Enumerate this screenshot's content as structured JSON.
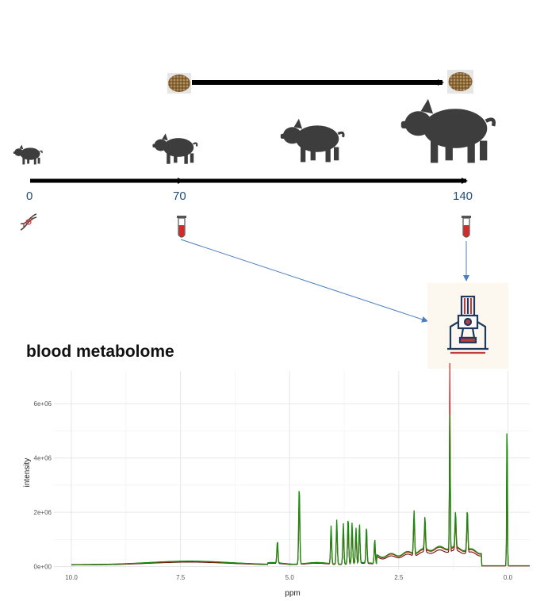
{
  "timeline": {
    "ticks": [
      "0",
      "70",
      "140"
    ],
    "tick_days": [
      0,
      70,
      140
    ]
  },
  "section_title": "blood metabolome",
  "chart_data": {
    "type": "line",
    "title": "",
    "xlabel": "ppm",
    "ylabel": "intensity",
    "x_reversed": true,
    "xlim": [
      10.4,
      -0.5
    ],
    "ylim": [
      -100000,
      7200000
    ],
    "xticks": [
      10.0,
      7.5,
      5.0,
      2.5,
      0.0
    ],
    "xtick_labels": [
      "10.0",
      "7.5",
      "5.0",
      "2.5",
      "0.0"
    ],
    "yticks": [
      0,
      2000000,
      4000000,
      6000000
    ],
    "ytick_labels": [
      "0e+00",
      "2e+06",
      "4e+06",
      "6e+06"
    ],
    "grid": true,
    "legend": "none",
    "series_colors": [
      "#6b0f0f",
      "#e01010",
      "#1b8a10"
    ],
    "peaks": [
      {
        "x": 5.28,
        "y": 820000
      },
      {
        "x": 4.78,
        "y": 2900000
      },
      {
        "x": 4.05,
        "y": 1400000
      },
      {
        "x": 3.92,
        "y": 1650000
      },
      {
        "x": 3.77,
        "y": 1500000
      },
      {
        "x": 3.66,
        "y": 1700000
      },
      {
        "x": 3.57,
        "y": 1500000
      },
      {
        "x": 3.48,
        "y": 1300000
      },
      {
        "x": 3.4,
        "y": 1450000
      },
      {
        "x": 3.24,
        "y": 1350000
      },
      {
        "x": 3.05,
        "y": 900000
      },
      {
        "x": 2.15,
        "y": 1600000
      },
      {
        "x": 1.9,
        "y": 1200000
      },
      {
        "x": 1.33,
        "y": 7000000
      },
      {
        "x": 1.2,
        "y": 1300000
      },
      {
        "x": 0.93,
        "y": 1500000
      },
      {
        "x": 0.02,
        "y": 5800000
      }
    ]
  }
}
